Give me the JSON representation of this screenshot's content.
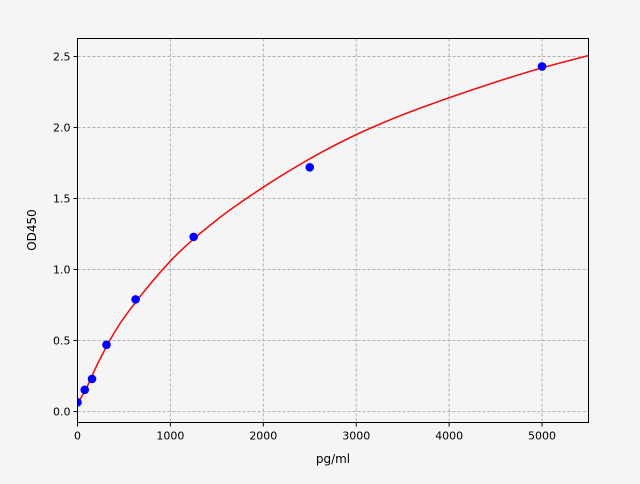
{
  "chart_data": {
    "type": "scatter",
    "title": "",
    "xlabel": "pg/ml",
    "ylabel": "OD450",
    "xlim": [
      0,
      5500
    ],
    "ylim": [
      -0.077,
      2.627
    ],
    "xticks": [
      0,
      1000,
      2000,
      3000,
      4000,
      5000
    ],
    "yticks": [
      0.0,
      0.5,
      1.0,
      1.5,
      2.0,
      2.5
    ],
    "xtick_labels": [
      "0",
      "1000",
      "2000",
      "3000",
      "4000",
      "5000"
    ],
    "ytick_labels": [
      "0.0",
      "0.5",
      "1.0",
      "1.5",
      "2.0",
      "2.5"
    ],
    "grid": true,
    "series": [
      {
        "kind": "points",
        "color": "#0000ff",
        "x": [
          0,
          78,
          156,
          312,
          625,
          1250,
          2500,
          5000
        ],
        "y": [
          0.065,
          0.153,
          0.23,
          0.47,
          0.79,
          1.23,
          1.72,
          2.43
        ]
      },
      {
        "kind": "fit-curve",
        "color": "#ee1111",
        "x": [
          0,
          100,
          250,
          500,
          1000,
          1500,
          2000,
          2500,
          3000,
          3500,
          4000,
          4500,
          5000,
          5500
        ],
        "y": [
          0.056,
          0.17,
          0.38,
          0.66,
          1.06,
          1.35,
          1.58,
          1.78,
          1.95,
          2.09,
          2.21,
          2.32,
          2.42,
          2.507
        ]
      }
    ]
  }
}
